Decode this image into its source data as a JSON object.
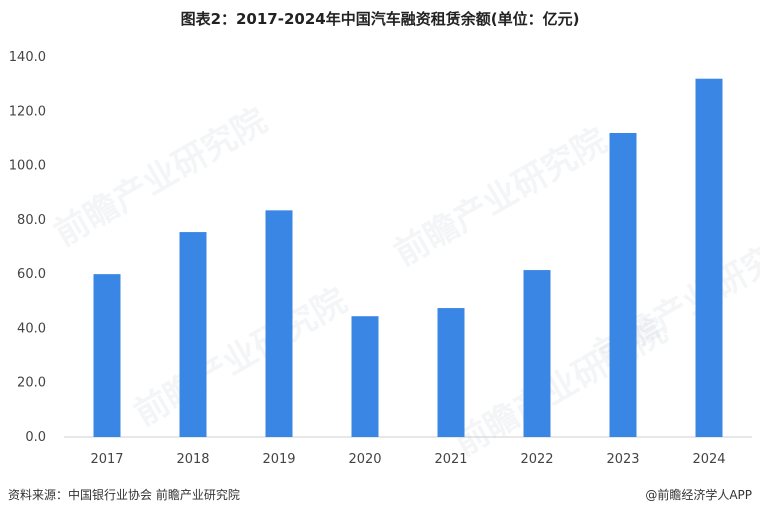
{
  "title": "图表2：2017-2024年中国汽车融资租赁余额(单位：亿元)",
  "source": "资料来源：中国银行业协会 前瞻产业研究院",
  "credit": "@前瞻经济学人APP",
  "watermark": "前瞻产业研究院",
  "chart_data": {
    "type": "bar",
    "categories": [
      "2017",
      "2018",
      "2019",
      "2020",
      "2021",
      "2022",
      "2023",
      "2024"
    ],
    "values": [
      60.0,
      75.5,
      83.5,
      44.5,
      47.5,
      61.5,
      112.0,
      132.0
    ],
    "yticks": [
      "0.0",
      "20.0",
      "40.0",
      "60.0",
      "80.0",
      "100.0",
      "120.0",
      "140.0"
    ],
    "ylim": [
      0,
      140
    ],
    "bar_color": "#3a86e4",
    "grid": false
  }
}
